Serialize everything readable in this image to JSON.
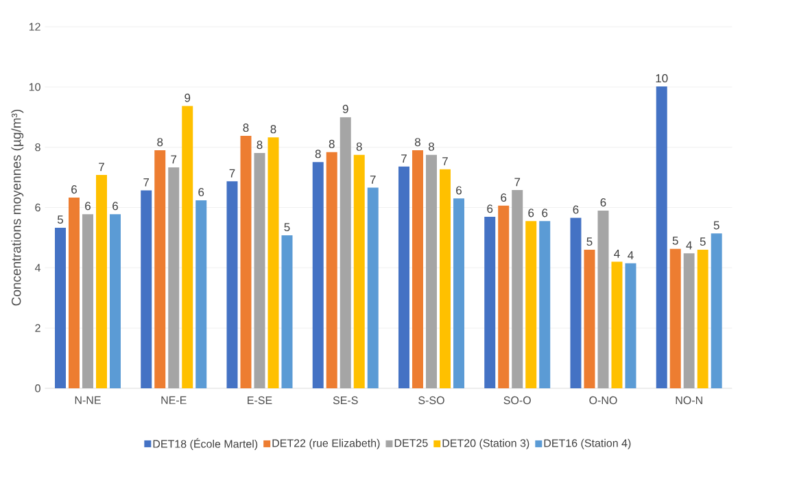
{
  "chart_data": {
    "type": "bar",
    "ylabel": "Concentrations moyennes (µg/m³)",
    "categories": [
      "N-NE",
      "NE-E",
      "E-SE",
      "SE-S",
      "S-SO",
      "SO-O",
      "O-NO",
      "NO-N"
    ],
    "series": [
      {
        "name": "DET18 (École Martel)",
        "color": "#4472c4",
        "values": [
          5.33,
          6.57,
          6.87,
          7.51,
          7.36,
          5.69,
          5.66,
          10.02
        ],
        "value_labels": [
          "5",
          "7",
          "7",
          "8",
          "7",
          "6",
          "6",
          "10"
        ]
      },
      {
        "name": "DET22 (rue Elizabeth)",
        "color": "#ed7d31",
        "values": [
          6.33,
          7.9,
          8.38,
          7.84,
          7.9,
          6.06,
          4.6,
          4.63
        ],
        "value_labels": [
          "6",
          "8",
          "8",
          "8",
          "8",
          "6",
          "5",
          "5"
        ]
      },
      {
        "name": "DET25",
        "color": "#a5a5a5",
        "values": [
          5.78,
          7.33,
          7.81,
          9.0,
          7.75,
          6.58,
          5.9,
          4.48
        ],
        "value_labels": [
          "6",
          "7",
          "8",
          "9",
          "8",
          "7",
          "6",
          "4"
        ]
      },
      {
        "name": "DET20 (Station 3)",
        "color": "#ffc000",
        "values": [
          7.08,
          9.37,
          8.33,
          7.75,
          7.27,
          5.55,
          4.2,
          4.6
        ],
        "value_labels": [
          "7",
          "9",
          "8",
          "8",
          "7",
          "6",
          "4",
          "5"
        ]
      },
      {
        "name": "DET16 (Station 4)",
        "color": "#5b9bd5",
        "values": [
          5.78,
          6.24,
          5.08,
          6.66,
          6.3,
          5.55,
          4.15,
          5.14
        ],
        "value_labels": [
          "6",
          "6",
          "5",
          "7",
          "6",
          "6",
          "4",
          "5"
        ]
      }
    ],
    "ylim": [
      0,
      12
    ],
    "yticks": [
      0,
      2,
      4,
      6,
      8,
      10,
      12
    ],
    "grid": "y",
    "legend": "bottom"
  }
}
